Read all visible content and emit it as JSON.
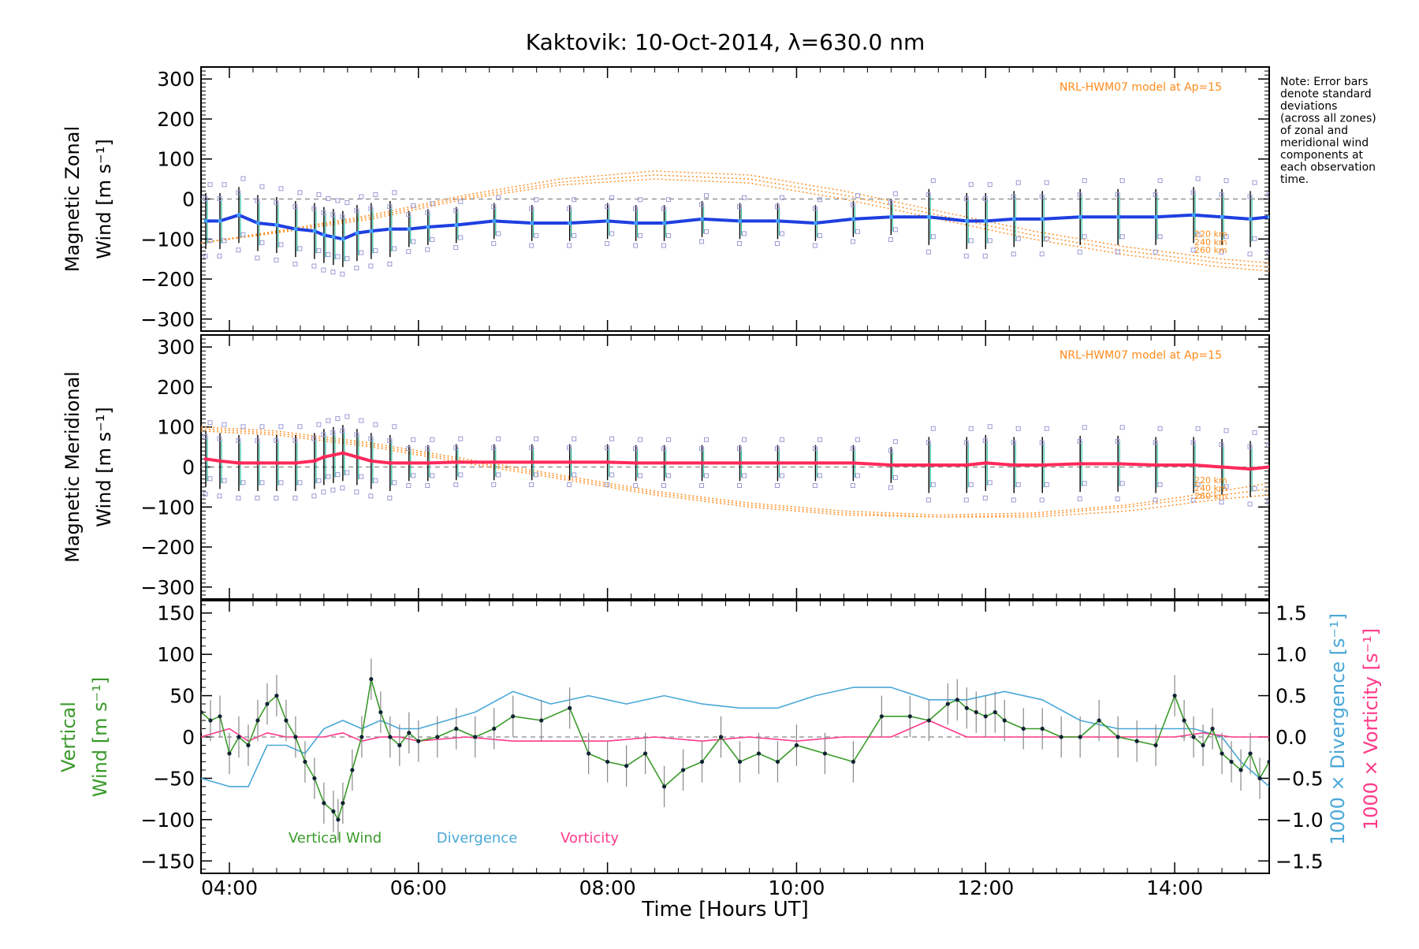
{
  "title": "Kaktovik: 10-Oct-2014, λ=630.0 nm",
  "note": [
    "Note: Error bars",
    "denote standard",
    "deviations",
    "(across all zones)",
    "of zonal and",
    "meridional wind",
    "components at",
    "each observation",
    "time."
  ],
  "x_label": "Time [Hours UT]",
  "x_ticks": [
    "04:00",
    "06:00",
    "08:00",
    "10:00",
    "12:00",
    "14:00"
  ],
  "colors": {
    "zonal": "#1f3fe0",
    "zonal_light": "#3fa0ff",
    "meridional": "#ff2a5a",
    "model": "#ff8a1a",
    "scatter": "#9a9ad8",
    "vertical": "#3a9a2a",
    "divergence": "#4aa8d8",
    "vorticity": "#ff3a8a",
    "error": "#000000"
  },
  "chart_data": [
    {
      "type": "line",
      "panel": "zonal",
      "ylabel_line1": "Magnetic Zonal",
      "ylabel_line2": "Wind [m s⁻¹]",
      "model_label": "NRL-HWM07 model at Ap=15",
      "altitude_labels": [
        "220 km",
        "240 km",
        "260 km"
      ],
      "ylim": [
        -330,
        330
      ],
      "y_ticks": [
        300,
        200,
        100,
        0,
        -100,
        -200,
        -300
      ],
      "xlim": [
        3.7,
        15.0
      ],
      "x": [
        3.75,
        3.9,
        4.1,
        4.3,
        4.5,
        4.7,
        4.9,
        5.0,
        5.1,
        5.2,
        5.35,
        5.5,
        5.7,
        5.9,
        6.1,
        6.4,
        6.8,
        7.2,
        7.6,
        8.0,
        8.3,
        8.6,
        9.0,
        9.4,
        9.8,
        10.2,
        10.6,
        11.0,
        11.4,
        11.8,
        12.0,
        12.3,
        12.6,
        13.0,
        13.4,
        13.8,
        14.2,
        14.5,
        14.8,
        15.0
      ],
      "series": [
        {
          "values": [
            -55,
            -55,
            -40,
            -60,
            -65,
            -75,
            -80,
            -90,
            -95,
            -100,
            -85,
            -80,
            -75,
            -75,
            -70,
            -65,
            -55,
            -60,
            -60,
            -55,
            -60,
            -60,
            -50,
            -55,
            -55,
            -60,
            -50,
            -45,
            -45,
            -55,
            -55,
            -50,
            -50,
            -45,
            -45,
            -45,
            -40,
            -45,
            -50,
            -45
          ]
        }
      ],
      "model": {
        "x": [
          3.7,
          4.5,
          5.5,
          6.5,
          7.5,
          8.5,
          9.5,
          10.5,
          11.5,
          12.5,
          13.5,
          14.5,
          15.0
        ],
        "h220": [
          -110,
          -80,
          -40,
          10,
          50,
          70,
          60,
          20,
          -30,
          -80,
          -120,
          -150,
          -160
        ],
        "h240": [
          -110,
          -82,
          -45,
          5,
          42,
          60,
          50,
          10,
          -40,
          -90,
          -130,
          -160,
          -170
        ],
        "h260": [
          -110,
          -85,
          -50,
          0,
          35,
          50,
          40,
          0,
          -50,
          -100,
          -140,
          -170,
          -180
        ]
      }
    },
    {
      "type": "line",
      "panel": "meridional",
      "ylabel_line1": "Magnetic Meridional",
      "ylabel_line2": "Wind [m s⁻¹]",
      "model_label": "NRL-HWM07 model at Ap=15",
      "altitude_labels": [
        "220 km",
        "240 km",
        "260 km"
      ],
      "ylim": [
        -330,
        330
      ],
      "y_ticks": [
        300,
        200,
        100,
        0,
        -100,
        -200,
        -300
      ],
      "xlim": [
        3.7,
        15.0
      ],
      "x": [
        3.75,
        3.9,
        4.1,
        4.3,
        4.5,
        4.7,
        4.9,
        5.0,
        5.1,
        5.2,
        5.35,
        5.5,
        5.7,
        5.9,
        6.1,
        6.4,
        6.8,
        7.2,
        7.6,
        8.0,
        8.3,
        8.6,
        9.0,
        9.4,
        9.8,
        10.2,
        10.6,
        11.0,
        11.4,
        11.8,
        12.0,
        12.3,
        12.6,
        13.0,
        13.4,
        13.8,
        14.2,
        14.5,
        14.8,
        15.0
      ],
      "series": [
        {
          "values": [
            20,
            15,
            10,
            10,
            10,
            10,
            15,
            25,
            30,
            35,
            25,
            15,
            10,
            10,
            10,
            12,
            12,
            12,
            12,
            12,
            10,
            10,
            10,
            10,
            10,
            10,
            10,
            5,
            5,
            5,
            10,
            5,
            5,
            8,
            8,
            5,
            5,
            0,
            -5,
            0
          ]
        }
      ],
      "model": {
        "x": [
          3.7,
          4.5,
          5.5,
          6.5,
          7.5,
          8.5,
          9.5,
          10.5,
          11.5,
          12.5,
          13.5,
          14.5,
          15.0
        ],
        "h220": [
          100,
          90,
          60,
          20,
          -20,
          -60,
          -90,
          -110,
          -120,
          -115,
          -95,
          -60,
          -40
        ],
        "h240": [
          95,
          85,
          55,
          15,
          -25,
          -65,
          -95,
          -115,
          -125,
          -120,
          -100,
          -70,
          -55
        ],
        "h260": [
          90,
          80,
          50,
          10,
          -30,
          -70,
          -100,
          -120,
          -125,
          -125,
          -110,
          -80,
          -70
        ]
      }
    },
    {
      "type": "line",
      "panel": "vertical",
      "ylabel_left_line1": "Vertical",
      "ylabel_left_line2": "Wind [m s⁻¹]",
      "ylabel_right_blue": "1000 × Divergence [s⁻¹]",
      "ylabel_right_pink": "1000 × Vorticity [s⁻¹]",
      "ylim": [
        -165,
        165
      ],
      "y_ticks": [
        150,
        100,
        50,
        0,
        -50,
        -100,
        -150
      ],
      "y2lim": [
        -1.65,
        1.65
      ],
      "y2_ticks": [
        "1.5",
        "1.0",
        "0.5",
        "0.0",
        "-0.5",
        "-1.0",
        "-1.5"
      ],
      "y2_values": [
        1.5,
        1.0,
        0.5,
        0.0,
        -0.5,
        -1.0,
        -1.5
      ],
      "xlim": [
        3.7,
        15.0
      ],
      "legend": [
        "Vertical Wind",
        "Divergence",
        "Vorticity"
      ],
      "series": [
        {
          "name": "Vertical Wind",
          "x": [
            3.7,
            3.8,
            3.9,
            4.0,
            4.1,
            4.2,
            4.3,
            4.4,
            4.5,
            4.6,
            4.7,
            4.8,
            4.9,
            5.0,
            5.1,
            5.15,
            5.2,
            5.3,
            5.4,
            5.5,
            5.6,
            5.7,
            5.8,
            5.9,
            6.0,
            6.2,
            6.4,
            6.6,
            6.8,
            7.0,
            7.3,
            7.6,
            7.8,
            8.0,
            8.2,
            8.4,
            8.6,
            8.8,
            9.0,
            9.2,
            9.4,
            9.6,
            9.8,
            10.0,
            10.3,
            10.6,
            10.9,
            11.2,
            11.4,
            11.6,
            11.7,
            11.8,
            11.9,
            12.0,
            12.1,
            12.2,
            12.4,
            12.6,
            12.8,
            13.0,
            13.2,
            13.4,
            13.6,
            13.8,
            14.0,
            14.1,
            14.2,
            14.3,
            14.4,
            14.5,
            14.6,
            14.7,
            14.8,
            14.9,
            15.0
          ],
          "values": [
            30,
            20,
            25,
            -20,
            0,
            -10,
            20,
            40,
            50,
            20,
            0,
            -30,
            -50,
            -80,
            -90,
            -100,
            -80,
            -40,
            0,
            70,
            30,
            0,
            -10,
            5,
            -5,
            0,
            10,
            0,
            10,
            25,
            20,
            35,
            -20,
            -30,
            -35,
            -20,
            -60,
            -40,
            -30,
            0,
            -30,
            -20,
            -30,
            -10,
            -20,
            -30,
            25,
            25,
            20,
            40,
            45,
            35,
            30,
            25,
            30,
            20,
            10,
            10,
            0,
            0,
            20,
            0,
            -5,
            -10,
            50,
            20,
            0,
            -10,
            10,
            -20,
            -30,
            -40,
            -20,
            -50,
            -30
          ]
        },
        {
          "name": "Divergence",
          "x": [
            3.7,
            4.0,
            4.2,
            4.4,
            4.6,
            4.8,
            5.0,
            5.2,
            5.4,
            5.6,
            5.8,
            6.0,
            6.3,
            6.6,
            7.0,
            7.4,
            7.8,
            8.2,
            8.6,
            9.0,
            9.4,
            9.8,
            10.2,
            10.6,
            11.0,
            11.4,
            11.8,
            12.2,
            12.6,
            13.0,
            13.4,
            13.8,
            14.2,
            14.5,
            14.7,
            14.9,
            15.0
          ],
          "values": [
            -0.5,
            -0.6,
            -0.6,
            -0.1,
            -0.1,
            -0.2,
            0.1,
            0.2,
            0.1,
            0.2,
            0.1,
            0.1,
            0.2,
            0.3,
            0.55,
            0.4,
            0.5,
            0.4,
            0.5,
            0.4,
            0.35,
            0.35,
            0.5,
            0.6,
            0.6,
            0.45,
            0.45,
            0.55,
            0.45,
            0.2,
            0.1,
            0.1,
            0.1,
            0.0,
            -0.3,
            -0.5,
            -0.6
          ]
        },
        {
          "name": "Vorticity",
          "x": [
            3.7,
            4.0,
            4.2,
            4.4,
            4.6,
            4.8,
            5.0,
            5.2,
            5.4,
            5.6,
            5.8,
            6.0,
            6.5,
            7.0,
            7.5,
            8.0,
            8.5,
            9.0,
            9.5,
            10.0,
            10.5,
            11.0,
            11.2,
            11.4,
            11.6,
            11.8,
            12.0,
            12.5,
            13.0,
            13.5,
            14.0,
            14.3,
            14.6,
            14.8,
            15.0
          ],
          "values": [
            0.0,
            0.1,
            -0.05,
            0.05,
            0.0,
            0.0,
            0.0,
            0.05,
            -0.05,
            0.0,
            0.0,
            -0.05,
            0.0,
            -0.05,
            -0.05,
            -0.05,
            0.0,
            -0.05,
            0.0,
            -0.05,
            0.0,
            0.0,
            0.1,
            0.2,
            0.1,
            0.0,
            0.0,
            0.0,
            0.0,
            0.0,
            0.0,
            0.05,
            0.0,
            0.0,
            0.0
          ]
        }
      ]
    }
  ]
}
